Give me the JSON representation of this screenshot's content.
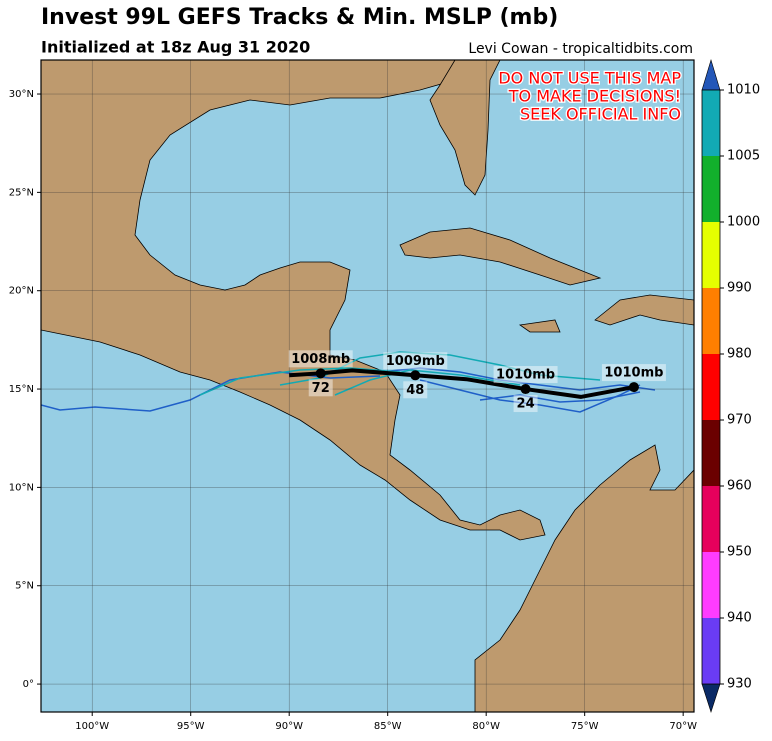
{
  "map": {
    "title": "Invest 99L GEFS Tracks & Min. MSLP (mb)",
    "subtitle": "Initialized at 18z Aug 31 2020",
    "credit": "Levi Cowan - tropicaltidbits.com",
    "warning": [
      "DO NOT USE THIS MAP",
      "TO MAKE DECISIONS!",
      "SEEK OFFICIAL INFO"
    ],
    "xlim": [
      -102.6,
      -69.45
    ],
    "ylim": [
      -1.42,
      31.73
    ],
    "xticks": [
      {
        "value": -100,
        "label": "100°W"
      },
      {
        "value": -95,
        "label": "95°W"
      },
      {
        "value": -90,
        "label": "90°W"
      },
      {
        "value": -85,
        "label": "85°W"
      },
      {
        "value": -80,
        "label": "80°W"
      },
      {
        "value": -75,
        "label": "75°W"
      },
      {
        "value": -70,
        "label": "70°W"
      }
    ],
    "yticks": [
      {
        "value": 0,
        "label": "0°"
      },
      {
        "value": 5,
        "label": "5°N"
      },
      {
        "value": 10,
        "label": "10°N"
      },
      {
        "value": 15,
        "label": "15°N"
      },
      {
        "value": 20,
        "label": "20°N"
      },
      {
        "value": 25,
        "label": "25°N"
      },
      {
        "value": 30,
        "label": "30°N"
      }
    ],
    "mean_track": {
      "lon": [
        -90.0,
        -88.4,
        -86.8,
        -83.6,
        -81.0,
        -78.0,
        -75.2,
        -72.5
      ],
      "lat": [
        15.7,
        15.8,
        15.95,
        15.7,
        15.5,
        15.0,
        14.6,
        15.1
      ]
    },
    "track_points": [
      {
        "lon": -88.4,
        "lat": 15.8,
        "pressure": "1008mb",
        "hour": "72"
      },
      {
        "lon": -83.6,
        "lat": 15.7,
        "pressure": "1009mb",
        "hour": "48"
      },
      {
        "lon": -78.0,
        "lat": 15.0,
        "pressure": "1010mb",
        "hour": "24"
      },
      {
        "lon": -72.5,
        "lat": 15.1,
        "pressure": "1010mb"
      }
    ],
    "colorbar": {
      "levels": [
        930,
        940,
        950,
        960,
        970,
        980,
        990,
        1000,
        1005,
        1010
      ],
      "colors": [
        "#6a3cf5",
        "#ff3cff",
        "#e6005c",
        "#6b0000",
        "#ff0000",
        "#ff7f00",
        "#e5ff00",
        "#12b02c",
        "#12aab4"
      ]
    }
  }
}
